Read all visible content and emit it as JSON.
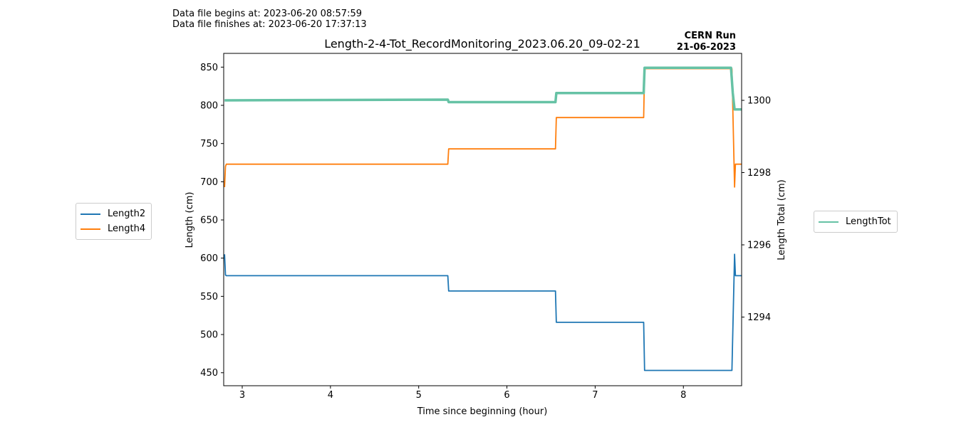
{
  "header": {
    "begins": "Data file begins at: 2023-06-20 08:57:59",
    "finishes": "Data file finishes at: 2023-06-20 17:37:13",
    "run_line1": "CERN Run",
    "run_line2": "21-06-2023"
  },
  "legends": {
    "left": [
      {
        "label": "Length2",
        "color": "#1f77b4"
      },
      {
        "label": "Length4",
        "color": "#ff7f0e"
      }
    ],
    "right": [
      {
        "label": "LengthTot",
        "color": "#66c2a5"
      }
    ]
  },
  "chart_data": {
    "type": "line",
    "title": "Length-2-4-Tot_RecordMonitoring_2023.06.20_09-02-21",
    "xlabel": "Time since beginning (hour)",
    "ylabel": "Length (cm)",
    "y2label": "Length Total (cm)",
    "xlim": [
      2.79,
      8.66
    ],
    "ylim": [
      433,
      868
    ],
    "y2lim": [
      1292.1,
      1301.3
    ],
    "xticks": [
      3,
      4,
      5,
      6,
      7,
      8
    ],
    "yticks": [
      450,
      500,
      550,
      600,
      650,
      700,
      750,
      800,
      850
    ],
    "y2ticks": [
      1294,
      1296,
      1298,
      1300
    ],
    "series": [
      {
        "name": "Length2",
        "axis": "left",
        "color": "#1f77b4",
        "x": [
          2.8,
          2.81,
          2.82,
          5.33,
          5.34,
          6.55,
          6.56,
          7.55,
          7.56,
          8.55,
          8.58,
          8.59,
          8.66
        ],
        "y": [
          605,
          578,
          577,
          577,
          557,
          557,
          516,
          516,
          453,
          453,
          605,
          577,
          577
        ]
      },
      {
        "name": "Length4",
        "axis": "left",
        "color": "#ff7f0e",
        "x": [
          2.8,
          2.81,
          2.82,
          5.33,
          5.34,
          6.55,
          6.56,
          7.55,
          7.56,
          8.55,
          8.58,
          8.59,
          8.66
        ],
        "y": [
          693,
          720,
          723,
          723,
          743,
          743,
          784,
          784,
          848,
          848,
          693,
          723,
          723
        ]
      },
      {
        "name": "LengthTot",
        "axis": "right",
        "color": "#66c2a5",
        "x": [
          2.8,
          2.82,
          5.33,
          5.34,
          6.55,
          6.56,
          7.55,
          7.56,
          8.54,
          8.56,
          8.58,
          8.66
        ],
        "y": [
          1300.0,
          1300.0,
          1300.02,
          1299.95,
          1299.95,
          1300.2,
          1300.2,
          1300.9,
          1300.9,
          1300.2,
          1299.75,
          1299.75
        ]
      }
    ],
    "grid": false
  }
}
